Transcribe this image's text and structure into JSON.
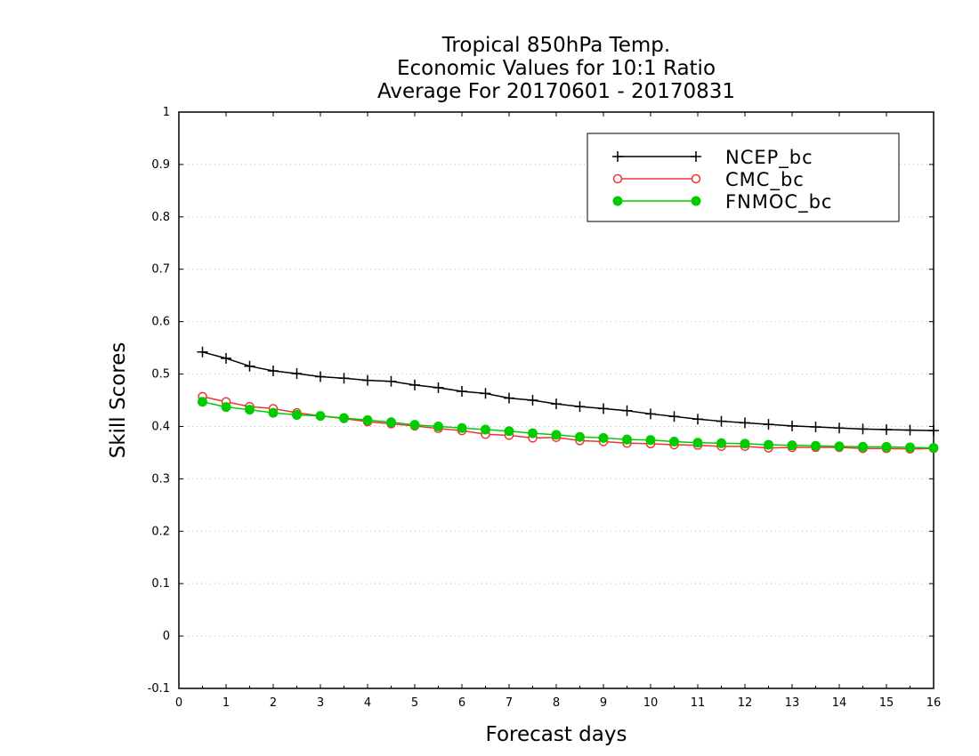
{
  "chart_data": {
    "type": "line",
    "title": [
      "Tropical 850hPa Temp.",
      "Economic Values for 10:1 Ratio",
      "Average For 20170601 - 20170831"
    ],
    "xlabel": "Forecast days",
    "ylabel": "Skill Scores",
    "xlim": [
      0,
      16
    ],
    "ylim": [
      -0.1,
      1
    ],
    "xticks": [
      0,
      1,
      2,
      3,
      4,
      5,
      6,
      7,
      8,
      9,
      10,
      11,
      12,
      13,
      14,
      15,
      16
    ],
    "yticks": [
      -0.1,
      0,
      0.1,
      0.2,
      0.3,
      0.4,
      0.5,
      0.6,
      0.7,
      0.8,
      0.9,
      1
    ],
    "ytick_labels": [
      "-0.1",
      "0",
      "0.1",
      "0.2",
      "0.3",
      "0.4",
      "0.5",
      "0.6",
      "0.7",
      "0.8",
      "0.9",
      "1"
    ],
    "grid": true,
    "legend_position": "top-right",
    "x": [
      0.5,
      1,
      1.5,
      2,
      2.5,
      3,
      3.5,
      4,
      4.5,
      5,
      5.5,
      6,
      6.5,
      7,
      7.5,
      8,
      8.5,
      9,
      9.5,
      10,
      10.5,
      11,
      11.5,
      12,
      12.5,
      13,
      13.5,
      14,
      14.5,
      15,
      15.5,
      16
    ],
    "series": [
      {
        "name": "NCEP_bc",
        "color": "#000000",
        "marker": "plus",
        "values": [
          0.542,
          0.53,
          0.515,
          0.506,
          0.501,
          0.495,
          0.492,
          0.488,
          0.486,
          0.479,
          0.474,
          0.467,
          0.463,
          0.454,
          0.45,
          0.443,
          0.438,
          0.434,
          0.43,
          0.424,
          0.419,
          0.414,
          0.41,
          0.407,
          0.404,
          0.401,
          0.399,
          0.397,
          0.395,
          0.394,
          0.393,
          0.392
        ]
      },
      {
        "name": "CMC_bc",
        "color": "#ee3333",
        "marker": "open-circle",
        "values": [
          0.457,
          0.447,
          0.438,
          0.434,
          0.426,
          0.42,
          0.415,
          0.409,
          0.405,
          0.401,
          0.396,
          0.392,
          0.385,
          0.383,
          0.378,
          0.379,
          0.373,
          0.371,
          0.368,
          0.367,
          0.365,
          0.364,
          0.362,
          0.362,
          0.359,
          0.36,
          0.36,
          0.36,
          0.358,
          0.358,
          0.357,
          0.358
        ]
      },
      {
        "name": "FNMOC_bc",
        "color": "#00cc00",
        "marker": "filled-circle",
        "values": [
          0.447,
          0.437,
          0.432,
          0.426,
          0.422,
          0.42,
          0.416,
          0.412,
          0.408,
          0.403,
          0.4,
          0.397,
          0.394,
          0.391,
          0.387,
          0.384,
          0.38,
          0.378,
          0.375,
          0.374,
          0.371,
          0.369,
          0.368,
          0.367,
          0.365,
          0.364,
          0.363,
          0.362,
          0.361,
          0.361,
          0.36,
          0.359
        ]
      }
    ]
  }
}
